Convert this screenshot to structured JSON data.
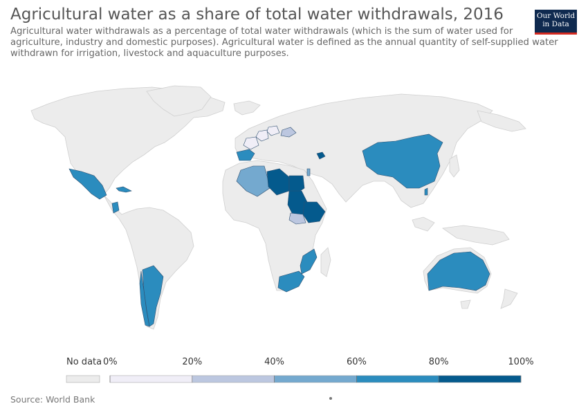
{
  "title": "Agricultural water as a share of total water withdrawals, 2016",
  "subtitle": "Agricultural water withdrawals as a percentage of total water withdrawals (which is the sum of water used for agriculture, industry and domestic purposes). Agricultural water is defined as the annual quantity of self-supplied water withdrawn for irrigation, livestock and aquaculture purposes.",
  "logo": {
    "line1": "Our World",
    "line2": "in Data"
  },
  "source": "Source: World Bank",
  "colors": {
    "no_data": "#ececec",
    "ocean": "#ffffff",
    "border": "#cfcfcf",
    "bins": [
      "#f0eef7",
      "#bcc7e0",
      "#74a9cf",
      "#2b8cbe",
      "#045a8d"
    ]
  },
  "legend": {
    "no_data_label": "No data",
    "ticks": [
      "0%",
      "20%",
      "40%",
      "60%",
      "80%",
      "100%"
    ]
  },
  "chart_data": {
    "type": "choropleth",
    "unit": "%",
    "bins": [
      [
        0,
        20
      ],
      [
        20,
        40
      ],
      [
        40,
        60
      ],
      [
        60,
        80
      ],
      [
        80,
        100
      ]
    ],
    "countries": [
      {
        "name": "Mexico",
        "bin": 3
      },
      {
        "name": "Cuba",
        "bin": 3
      },
      {
        "name": "Nicaragua",
        "bin": 3
      },
      {
        "name": "Argentina",
        "bin": 3
      },
      {
        "name": "Chile",
        "bin": 3
      },
      {
        "name": "Spain",
        "bin": 3
      },
      {
        "name": "Algeria",
        "bin": 2
      },
      {
        "name": "Libya",
        "bin": 4
      },
      {
        "name": "Egypt",
        "bin": 4
      },
      {
        "name": "Sudan",
        "bin": 4
      },
      {
        "name": "Ethiopia",
        "bin": 4
      },
      {
        "name": "South Sudan",
        "bin": 1
      },
      {
        "name": "Israel",
        "bin": 2
      },
      {
        "name": "Azerbaijan",
        "bin": 4
      },
      {
        "name": "Mozambique",
        "bin": 3
      },
      {
        "name": "South Africa",
        "bin": 3
      },
      {
        "name": "China",
        "bin": 3
      },
      {
        "name": "Taiwan",
        "bin": 3
      },
      {
        "name": "Australia",
        "bin": 3
      },
      {
        "name": "Ukraine",
        "bin": 1
      },
      {
        "name": "Germany",
        "bin": 0
      },
      {
        "name": "France",
        "bin": 0
      },
      {
        "name": "Poland",
        "bin": 0
      }
    ]
  }
}
